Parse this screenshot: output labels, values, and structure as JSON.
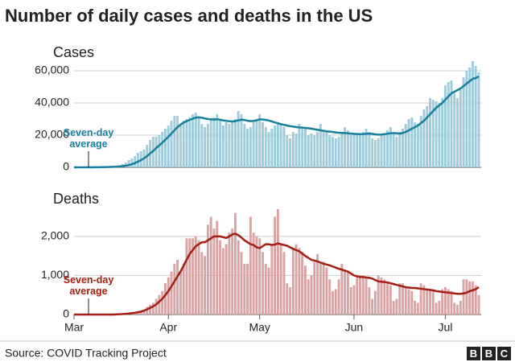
{
  "title": "Number of daily cases and deaths in the US",
  "source": "Source: COVID Tracking Project",
  "logo": [
    "B",
    "B",
    "C"
  ],
  "chart_data": [
    {
      "type": "bar",
      "title": "Cases",
      "ylim": [
        0,
        70000
      ],
      "yticks": [
        0,
        {
          "value": 20000,
          "label": "20,000"
        },
        {
          "value": 40000,
          "label": "40,000"
        },
        {
          "value": 60000,
          "label": "60,000"
        }
      ],
      "grid": true,
      "series": [
        {
          "type": "bar",
          "color": "#9fcbdb",
          "values": [
            0,
            0,
            10,
            20,
            30,
            50,
            80,
            100,
            150,
            200,
            300,
            400,
            500,
            700,
            900,
            1300,
            2000,
            3000,
            4500,
            5500,
            7000,
            9000,
            10000,
            11000,
            14000,
            17000,
            19000,
            19000,
            20000,
            22000,
            24000,
            26000,
            29000,
            32000,
            32000,
            26000,
            29000,
            30000,
            31000,
            33000,
            34000,
            31000,
            27000,
            25000,
            27000,
            30000,
            31000,
            33000,
            29000,
            26000,
            28000,
            27000,
            28000,
            30000,
            35000,
            33000,
            27000,
            24000,
            25000,
            28000,
            30000,
            33000,
            28000,
            25000,
            22000,
            24000,
            26000,
            28000,
            27000,
            25000,
            20000,
            18000,
            22000,
            21000,
            27000,
            25000,
            24000,
            20000,
            21000,
            20000,
            22000,
            27000,
            23000,
            22000,
            20000,
            19000,
            18000,
            19000,
            22000,
            25000,
            23000,
            20000,
            20000,
            21000,
            20000,
            22000,
            24000,
            22000,
            18000,
            17000,
            18000,
            20000,
            21000,
            23000,
            25000,
            21000,
            19000,
            22000,
            24000,
            27000,
            30000,
            31000,
            28000,
            27000,
            32000,
            36000,
            38000,
            43000,
            42000,
            41000,
            40000,
            43000,
            51000,
            53000,
            54000,
            46000,
            43000,
            48000,
            56000,
            60000,
            62000,
            66000,
            63000,
            59000
          ]
        },
        {
          "type": "line",
          "name": "Seven-day average",
          "color": "#17809d",
          "values": [
            0,
            0,
            0,
            0,
            10,
            20,
            30,
            50,
            70,
            100,
            130,
            180,
            250,
            320,
            420,
            560,
            760,
            1020,
            1400,
            1900,
            2600,
            3500,
            4500,
            5600,
            7000,
            8600,
            10200,
            12000,
            13600,
            15300,
            17200,
            19000,
            21000,
            23000,
            25000,
            26500,
            27800,
            28700,
            29500,
            30200,
            30900,
            31100,
            30800,
            30400,
            30000,
            29800,
            29700,
            29900,
            29600,
            29200,
            28900,
            28600,
            28500,
            28700,
            29200,
            29600,
            29400,
            29000,
            28700,
            28800,
            29200,
            29800,
            29700,
            29500,
            29100,
            28500,
            27900,
            27400,
            26800,
            26400,
            26000,
            25600,
            25300,
            25000,
            24800,
            24700,
            24500,
            24300,
            24000,
            23700,
            23300,
            23000,
            22700,
            22400,
            22200,
            22000,
            21700,
            21500,
            21400,
            21300,
            21100,
            21000,
            20800,
            20700,
            20600,
            20700,
            20900,
            21000,
            20800,
            20500,
            20300,
            20400,
            20600,
            20900,
            21200,
            21300,
            21100,
            21000,
            21300,
            22000,
            23000,
            24000,
            25000,
            26000,
            27500,
            29000,
            31000,
            33000,
            35000,
            37000,
            38500,
            40000,
            42000,
            44000,
            46000,
            47000,
            48000,
            49000,
            50500,
            52000,
            53500,
            55000,
            55500,
            56500
          ]
        }
      ]
    },
    {
      "type": "bar",
      "title": "Deaths",
      "categories": [
        "Mar",
        null,
        null,
        null,
        null,
        null,
        null,
        null,
        null,
        null,
        null,
        null,
        null,
        null,
        null,
        null,
        null,
        null,
        null,
        null,
        null,
        null,
        null,
        null,
        null,
        null,
        null,
        null,
        null,
        null,
        null,
        "Apr",
        null,
        null,
        null,
        null,
        null,
        null,
        null,
        null,
        null,
        null,
        null,
        null,
        null,
        null,
        null,
        null,
        null,
        null,
        null,
        null,
        null,
        null,
        null,
        null,
        null,
        null,
        null,
        null,
        null,
        "May",
        null,
        null,
        null,
        null,
        null,
        null,
        null,
        null,
        null,
        null,
        null,
        null,
        null,
        null,
        null,
        null,
        null,
        null,
        null,
        null,
        null,
        null,
        null,
        null,
        null,
        null,
        null,
        null,
        null,
        null,
        "Jun",
        null,
        null,
        null,
        null,
        null,
        null,
        null,
        null,
        null,
        null,
        null,
        null,
        null,
        null,
        null,
        null,
        null,
        null,
        null,
        null,
        null,
        null,
        null,
        null,
        null,
        null,
        null,
        null,
        null,
        "Jul",
        null,
        null,
        null,
        null,
        null,
        null,
        null,
        null,
        null,
        null,
        null
      ],
      "ylim": [
        0,
        2800
      ],
      "yticks": [
        0,
        {
          "value": 1000,
          "label": "1,000"
        },
        {
          "value": 2000,
          "label": "2,000"
        }
      ],
      "grid": true,
      "series": [
        {
          "type": "bar",
          "color": "#d9a3a4",
          "values": [
            0,
            0,
            0,
            0,
            0,
            0,
            0,
            0,
            0,
            0,
            0,
            0,
            0,
            0,
            10,
            10,
            20,
            30,
            40,
            50,
            60,
            80,
            100,
            130,
            200,
            250,
            300,
            400,
            500,
            600,
            800,
            950,
            1100,
            1300,
            1400,
            1100,
            1300,
            1950,
            1950,
            1950,
            2000,
            1900,
            1600,
            1500,
            2300,
            2500,
            2200,
            2400,
            1900,
            1700,
            1800,
            2100,
            2200,
            2600,
            1900,
            1600,
            1300,
            1300,
            2500,
            2100,
            2000,
            1950,
            1600,
            1300,
            1200,
            1800,
            2500,
            2700,
            1800,
            1600,
            800,
            700,
            1700,
            1800,
            1700,
            1600,
            1250,
            900,
            1000,
            1350,
            1550,
            1300,
            1350,
            1200,
            900,
            600,
            650,
            900,
            1300,
            1150,
            1100,
            700,
            750,
            1000,
            1000,
            1000,
            950,
            700,
            400,
            600,
            1000,
            950,
            900,
            850,
            750,
            350,
            400,
            800,
            800,
            700,
            650,
            600,
            350,
            300,
            800,
            750,
            650,
            650,
            600,
            300,
            350,
            650,
            700,
            650,
            600,
            300,
            250,
            350,
            900,
            900,
            850,
            850,
            750,
            500
          ]
        },
        {
          "type": "line",
          "name": "Seven-day average",
          "color": "#a41e12",
          "values": [
            0,
            0,
            0,
            0,
            0,
            0,
            0,
            0,
            0,
            0,
            0,
            0,
            0,
            0,
            5,
            8,
            12,
            18,
            25,
            35,
            45,
            60,
            75,
            100,
            130,
            170,
            210,
            260,
            330,
            400,
            500,
            600,
            720,
            850,
            980,
            1100,
            1250,
            1400,
            1550,
            1650,
            1750,
            1800,
            1850,
            1850,
            1900,
            1950,
            2000,
            2000,
            2000,
            1980,
            1960,
            2000,
            2050,
            2070,
            2030,
            1970,
            1900,
            1850,
            1800,
            1780,
            1720,
            1700,
            1750,
            1800,
            1800,
            1780,
            1790,
            1820,
            1800,
            1780,
            1760,
            1720,
            1680,
            1650,
            1620,
            1560,
            1500,
            1450,
            1400,
            1380,
            1360,
            1330,
            1300,
            1280,
            1260,
            1230,
            1200,
            1170,
            1150,
            1120,
            1100,
            1050,
            1000,
            980,
            960,
            960,
            950,
            940,
            920,
            880,
            850,
            840,
            830,
            820,
            800,
            780,
            760,
            740,
            720,
            700,
            690,
            680,
            680,
            670,
            660,
            650,
            640,
            630,
            620,
            600,
            590,
            580,
            570,
            560,
            550,
            540,
            530,
            530,
            540,
            560,
            600,
            620,
            650,
            700
          ]
        }
      ]
    }
  ]
}
